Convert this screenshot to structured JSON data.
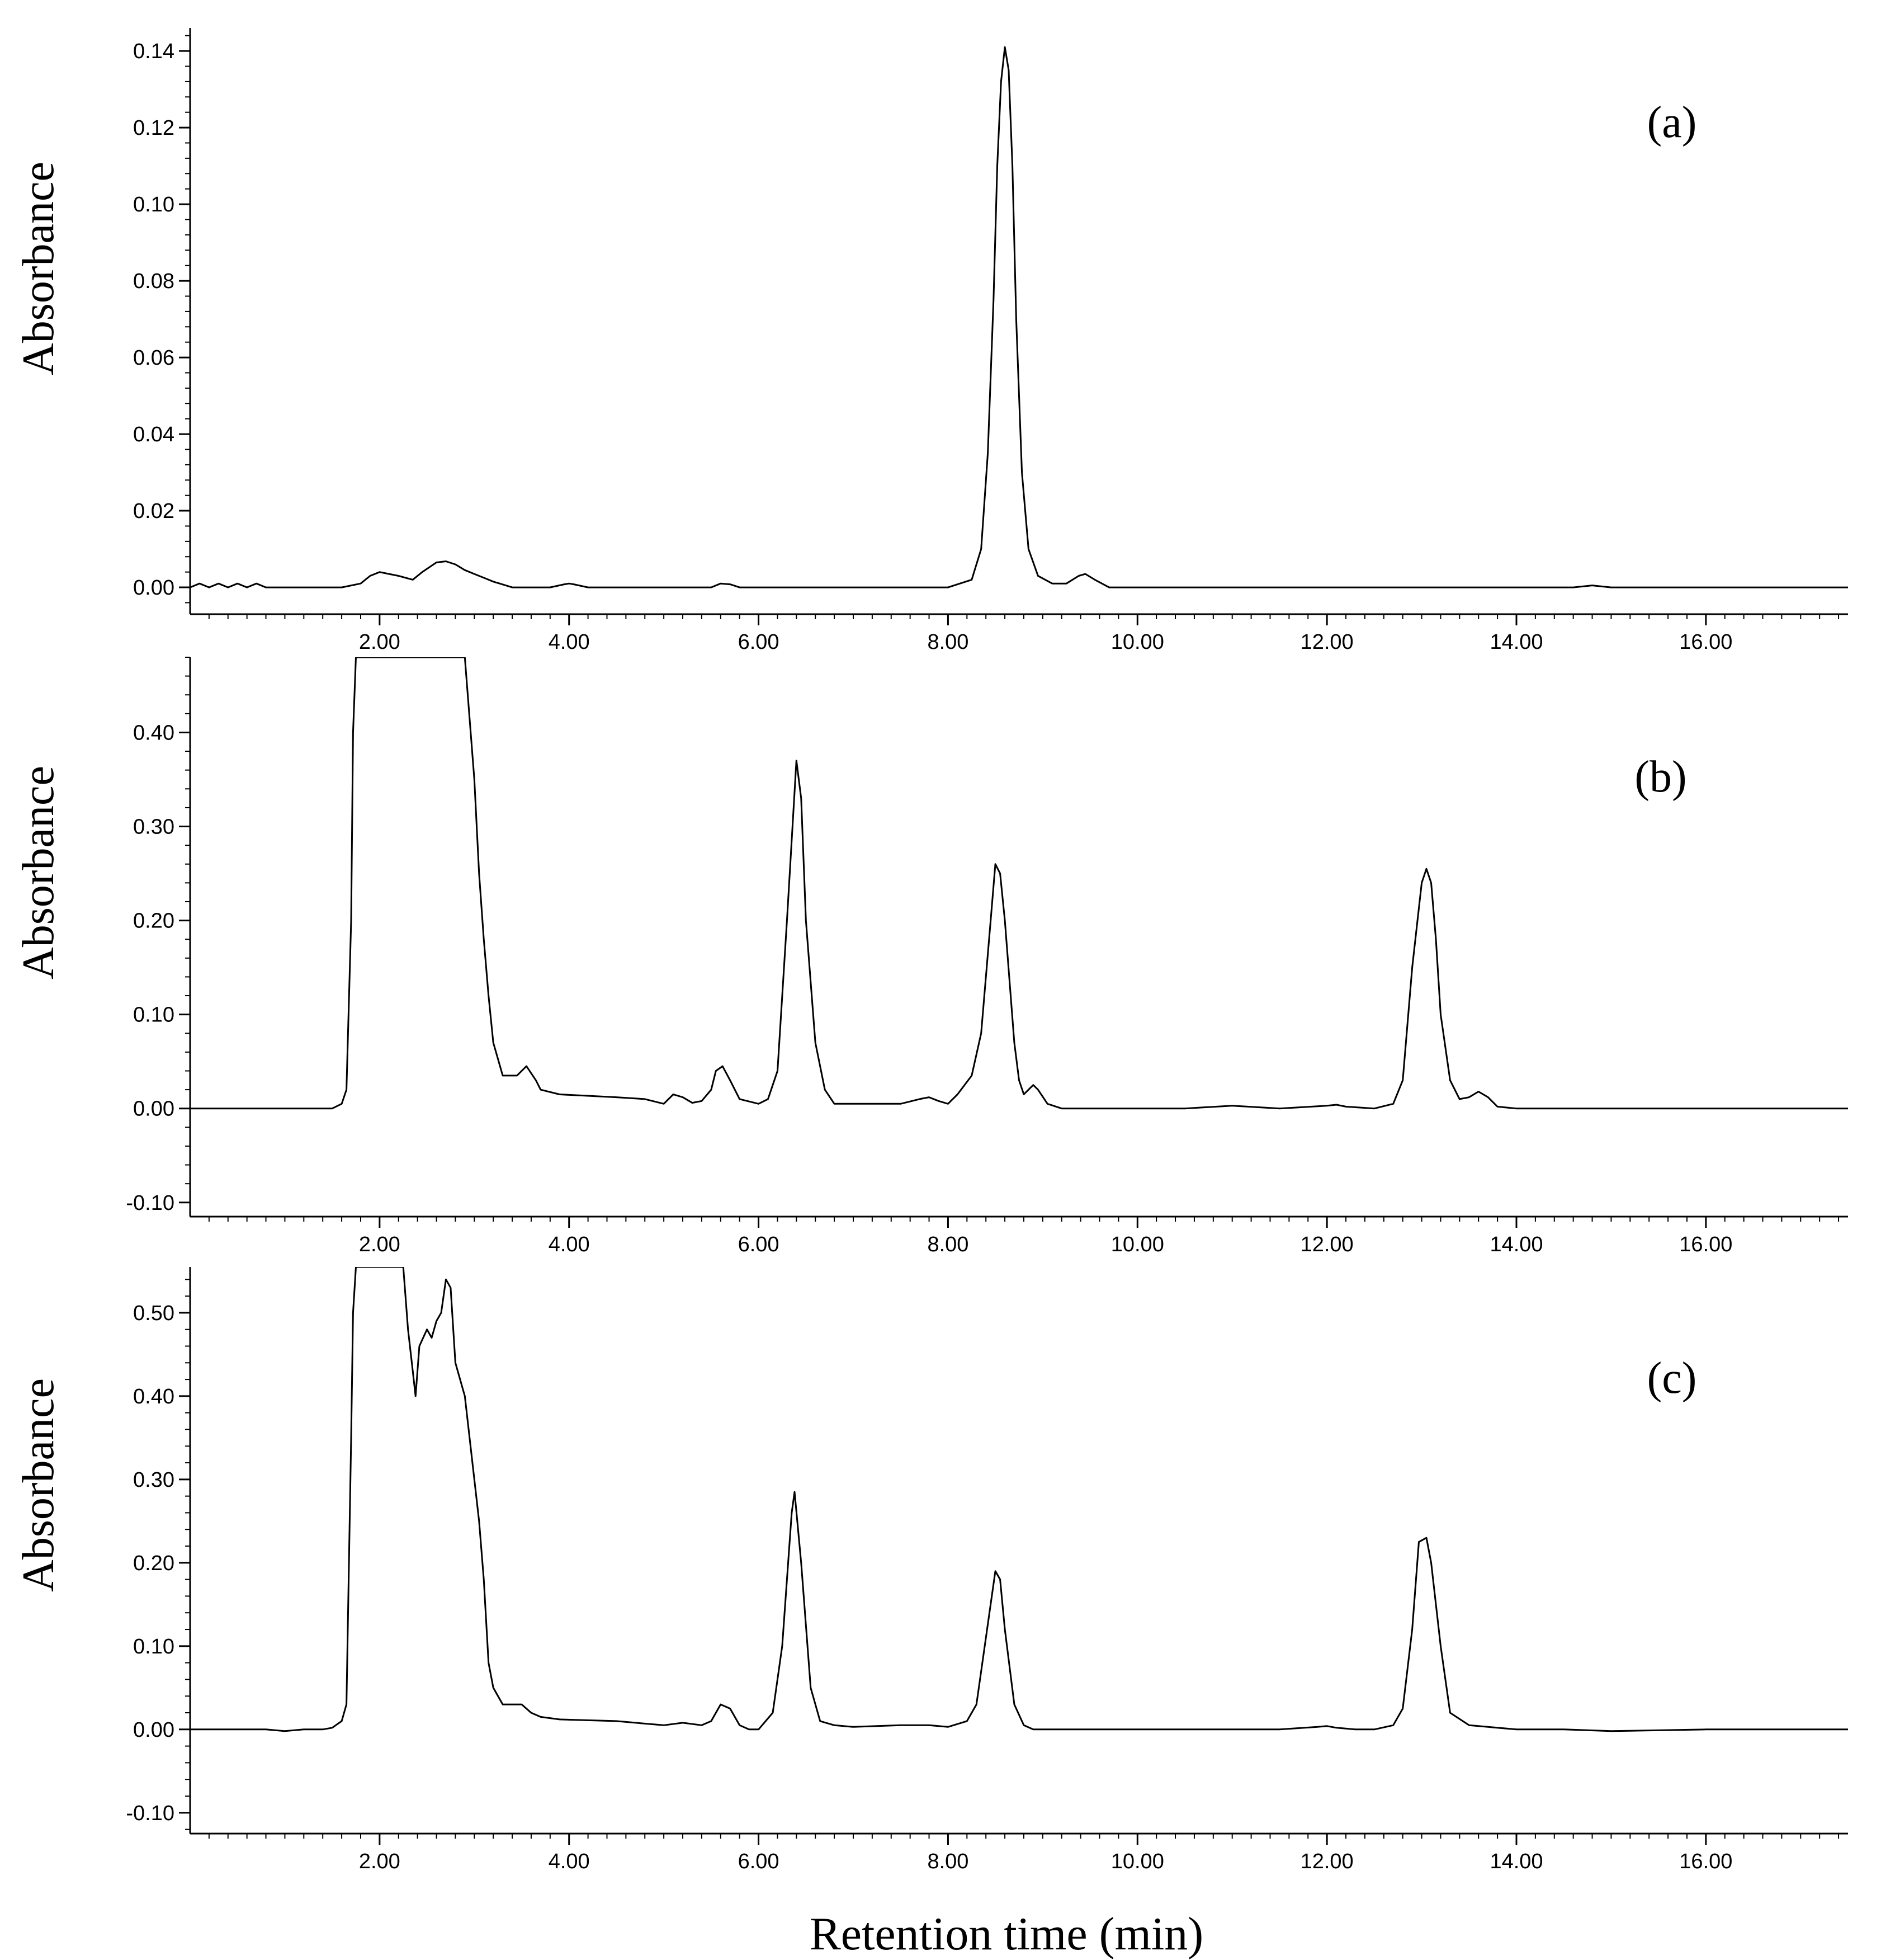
{
  "figure": {
    "xlabel": "Retention time (min)"
  },
  "chart_data": [
    {
      "type": "line",
      "panel_label": "(a)",
      "ylabel": "Absorbance",
      "xlim": [
        0,
        17.5
      ],
      "ylim": [
        -0.007,
        0.146
      ],
      "xticks": [
        2,
        4,
        6,
        8,
        10,
        12,
        14,
        16
      ],
      "xtick_labels": [
        "2.00",
        "4.00",
        "6.00",
        "8.00",
        "10.00",
        "12.00",
        "14.00",
        "16.00"
      ],
      "yticks": [
        0,
        0.02,
        0.04,
        0.06,
        0.08,
        0.1,
        0.12,
        0.14
      ],
      "ytick_labels": [
        "0.00",
        "0.02",
        "0.04",
        "0.06",
        "0.08",
        "0.10",
        "0.12",
        "0.14"
      ],
      "grid": false,
      "series": [
        {
          "x": [
            0,
            0.1,
            0.2,
            0.3,
            0.4,
            0.5,
            0.6,
            0.7,
            0.8,
            1.0,
            1.4,
            1.6,
            1.8,
            1.9,
            2.0,
            2.1,
            2.2,
            2.35,
            2.45,
            2.6,
            2.7,
            2.8,
            2.9,
            3.0,
            3.1,
            3.2,
            3.4,
            3.8,
            3.95,
            4.0,
            4.05,
            4.2,
            5.0,
            5.5,
            5.6,
            5.7,
            5.8,
            7.0,
            8.0,
            8.25,
            8.35,
            8.42,
            8.48,
            8.52,
            8.56,
            8.6,
            8.64,
            8.68,
            8.72,
            8.78,
            8.85,
            8.95,
            9.1,
            9.25,
            9.38,
            9.45,
            9.55,
            9.7,
            10.0,
            11.0,
            12.0,
            13.0,
            14.0,
            14.6,
            14.8,
            15.0,
            16.0,
            17.5
          ],
          "y": [
            0,
            0.001,
            0,
            0.001,
            0,
            0.001,
            0,
            0.001,
            0,
            0,
            0,
            0,
            0.001,
            0.003,
            0.004,
            0.0035,
            0.003,
            0.002,
            0.004,
            0.0065,
            0.0068,
            0.006,
            0.0045,
            0.0035,
            0.0025,
            0.0015,
            0,
            0,
            0.0008,
            0.001,
            0.0008,
            0,
            0,
            0,
            0.001,
            0.0008,
            0,
            0,
            0,
            0.002,
            0.01,
            0.035,
            0.075,
            0.11,
            0.132,
            0.141,
            0.135,
            0.11,
            0.07,
            0.03,
            0.01,
            0.003,
            0.001,
            0.001,
            0.003,
            0.0035,
            0.002,
            0,
            0,
            0,
            0,
            0,
            0,
            0,
            0.0005,
            0,
            0,
            0
          ]
        }
      ]
    },
    {
      "type": "line",
      "panel_label": "(b)",
      "ylabel": "Absorbance",
      "xlim": [
        0,
        17.5
      ],
      "ylim": [
        -0.115,
        0.48
      ],
      "xticks": [
        2,
        4,
        6,
        8,
        10,
        12,
        14,
        16
      ],
      "xtick_labels": [
        "2.00",
        "4.00",
        "6.00",
        "8.00",
        "10.00",
        "12.00",
        "14.00",
        "16.00"
      ],
      "yticks": [
        -0.1,
        0,
        0.1,
        0.2,
        0.3,
        0.4
      ],
      "ytick_labels": [
        "-0.10",
        "0.00",
        "0.10",
        "0.20",
        "0.30",
        "0.40"
      ],
      "grid": false,
      "series": [
        {
          "x": [
            0,
            1.5,
            1.6,
            1.65,
            1.7,
            1.72,
            1.75,
            2.9,
            3.0,
            3.05,
            3.1,
            3.15,
            3.2,
            3.3,
            3.45,
            3.55,
            3.65,
            3.7,
            3.9,
            4.5,
            4.8,
            5.0,
            5.1,
            5.2,
            5.3,
            5.4,
            5.5,
            5.55,
            5.62,
            5.7,
            5.8,
            6.0,
            6.1,
            6.2,
            6.3,
            6.4,
            6.45,
            6.5,
            6.6,
            6.7,
            6.8,
            7.0,
            7.5,
            7.7,
            7.8,
            7.9,
            8.0,
            8.1,
            8.25,
            8.35,
            8.45,
            8.5,
            8.55,
            8.6,
            8.7,
            8.75,
            8.8,
            8.85,
            8.9,
            8.95,
            9.05,
            9.2,
            9.5,
            10.5,
            11.0,
            11.5,
            12.0,
            12.1,
            12.2,
            12.5,
            12.7,
            12.8,
            12.9,
            13.0,
            13.05,
            13.1,
            13.15,
            13.2,
            13.3,
            13.4,
            13.5,
            13.6,
            13.7,
            13.8,
            14.0,
            15.0,
            16.0,
            17.5
          ],
          "y": [
            0,
            0,
            0.005,
            0.02,
            0.2,
            0.4,
            0.48,
            0.48,
            0.35,
            0.25,
            0.18,
            0.12,
            0.07,
            0.035,
            0.035,
            0.045,
            0.03,
            0.02,
            0.015,
            0.012,
            0.01,
            0.005,
            0.015,
            0.012,
            0.006,
            0.008,
            0.02,
            0.04,
            0.045,
            0.03,
            0.01,
            0.005,
            0.01,
            0.04,
            0.2,
            0.37,
            0.33,
            0.2,
            0.07,
            0.02,
            0.005,
            0.005,
            0.005,
            0.01,
            0.012,
            0.008,
            0.005,
            0.015,
            0.035,
            0.08,
            0.2,
            0.26,
            0.25,
            0.2,
            0.07,
            0.03,
            0.015,
            0.02,
            0.025,
            0.02,
            0.005,
            0,
            0,
            0,
            0.003,
            0,
            0.003,
            0.004,
            0.002,
            0,
            0.005,
            0.03,
            0.15,
            0.24,
            0.255,
            0.24,
            0.18,
            0.1,
            0.03,
            0.01,
            0.012,
            0.018,
            0.012,
            0.002,
            0,
            0,
            0,
            0
          ]
        }
      ]
    },
    {
      "type": "line",
      "panel_label": "(c)",
      "ylabel": "Absorbance",
      "xlim": [
        0,
        17.5
      ],
      "ylim": [
        -0.125,
        0.555
      ],
      "xticks": [
        2,
        4,
        6,
        8,
        10,
        12,
        14,
        16
      ],
      "xtick_labels": [
        "2.00",
        "4.00",
        "6.00",
        "8.00",
        "10.00",
        "12.00",
        "14.00",
        "16.00"
      ],
      "yticks": [
        -0.1,
        0,
        0.1,
        0.2,
        0.3,
        0.4,
        0.5
      ],
      "ytick_labels": [
        "-0.10",
        "0.00",
        "0.10",
        "0.20",
        "0.30",
        "0.40",
        "0.50"
      ],
      "grid": false,
      "series": [
        {
          "x": [
            0,
            0.8,
            1.0,
            1.2,
            1.4,
            1.5,
            1.6,
            1.65,
            1.7,
            1.72,
            1.75,
            2.25,
            2.3,
            2.35,
            2.38,
            2.42,
            2.5,
            2.55,
            2.6,
            2.65,
            2.7,
            2.75,
            2.8,
            2.9,
            3.0,
            3.05,
            3.1,
            3.15,
            3.2,
            3.3,
            3.5,
            3.6,
            3.7,
            3.9,
            4.5,
            5.0,
            5.2,
            5.4,
            5.5,
            5.6,
            5.7,
            5.8,
            5.9,
            6.0,
            6.15,
            6.25,
            6.35,
            6.38,
            6.45,
            6.55,
            6.65,
            6.8,
            7.0,
            7.5,
            7.8,
            8.0,
            8.2,
            8.3,
            8.4,
            8.5,
            8.55,
            8.6,
            8.7,
            8.8,
            8.9,
            9.5,
            10.5,
            11.5,
            11.9,
            12.0,
            12.1,
            12.3,
            12.5,
            12.7,
            12.8,
            12.9,
            12.97,
            13.05,
            13.1,
            13.2,
            13.3,
            13.5,
            14.0,
            14.5,
            15.0,
            16.0,
            16.5,
            17.0,
            17.5
          ],
          "y": [
            0,
            0,
            -0.002,
            0,
            0,
            0.002,
            0.01,
            0.03,
            0.35,
            0.5,
            0.555,
            0.555,
            0.48,
            0.43,
            0.4,
            0.46,
            0.48,
            0.47,
            0.49,
            0.5,
            0.54,
            0.53,
            0.44,
            0.4,
            0.3,
            0.25,
            0.18,
            0.08,
            0.05,
            0.03,
            0.03,
            0.02,
            0.015,
            0.012,
            0.01,
            0.005,
            0.008,
            0.005,
            0.01,
            0.03,
            0.025,
            0.005,
            0,
            0,
            0.02,
            0.1,
            0.26,
            0.285,
            0.2,
            0.05,
            0.01,
            0.005,
            0.003,
            0.005,
            0.005,
            0.003,
            0.01,
            0.03,
            0.11,
            0.19,
            0.18,
            0.12,
            0.03,
            0.005,
            0,
            0,
            0,
            0,
            0.003,
            0.004,
            0.002,
            0,
            0,
            0.005,
            0.025,
            0.12,
            0.225,
            0.23,
            0.2,
            0.1,
            0.02,
            0.005,
            0,
            0,
            -0.002,
            0,
            0,
            0,
            0
          ]
        }
      ]
    }
  ]
}
